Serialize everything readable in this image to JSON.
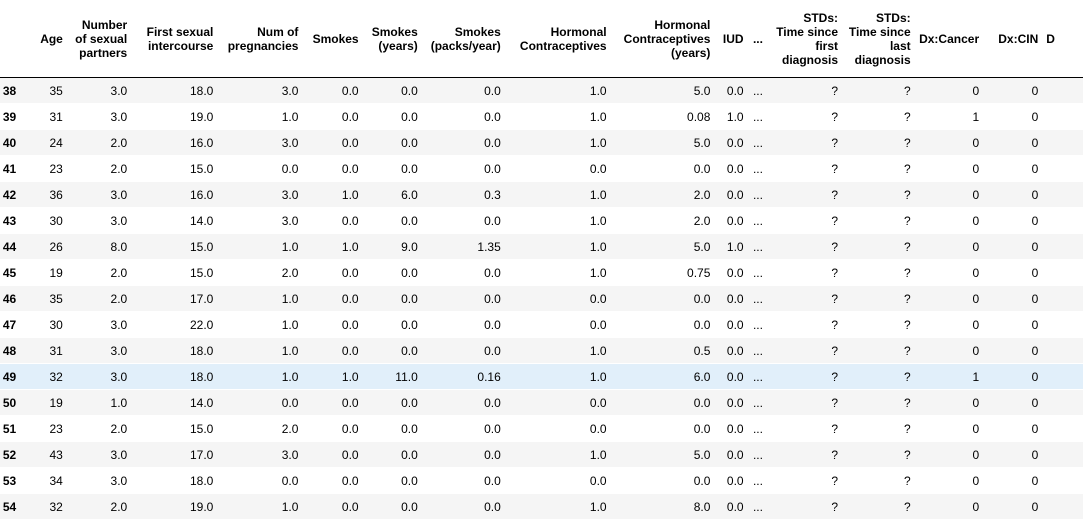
{
  "columns": {
    "age": "Age",
    "num_sexual_partners": "Number of sexual partners",
    "first_sexual_intercourse": "First sexual intercourse",
    "num_pregnancies": "Num of pregnancies",
    "smokes": "Smokes",
    "smokes_years": "Smokes (years)",
    "smokes_packs_year": "Smokes (packs/year)",
    "hormonal_contraceptives": "Hormonal Contraceptives",
    "hormonal_contraceptives_years": "Hormonal Contraceptives (years)",
    "iud": "IUD",
    "ellipsis": "...",
    "stds_time_first": "STDs: Time since first diagnosis",
    "stds_time_last": "STDs: Time since last diagnosis",
    "dx_cancer": "Dx:Cancer",
    "dx_cin": "Dx:CIN",
    "next_truncated": "D"
  },
  "rows": [
    [
      "38",
      "35",
      "3.0",
      "18.0",
      "3.0",
      "0.0",
      "0.0",
      "0.0",
      "1.0",
      "5.0",
      "0.0",
      "...",
      "?",
      "?",
      "0",
      "0"
    ],
    [
      "39",
      "31",
      "3.0",
      "19.0",
      "1.0",
      "0.0",
      "0.0",
      "0.0",
      "1.0",
      "0.08",
      "1.0",
      "...",
      "?",
      "?",
      "1",
      "0"
    ],
    [
      "40",
      "24",
      "2.0",
      "16.0",
      "3.0",
      "0.0",
      "0.0",
      "0.0",
      "1.0",
      "5.0",
      "0.0",
      "...",
      "?",
      "?",
      "0",
      "0"
    ],
    [
      "41",
      "23",
      "2.0",
      "15.0",
      "0.0",
      "0.0",
      "0.0",
      "0.0",
      "0.0",
      "0.0",
      "0.0",
      "...",
      "?",
      "?",
      "0",
      "0"
    ],
    [
      "42",
      "36",
      "3.0",
      "16.0",
      "3.0",
      "1.0",
      "6.0",
      "0.3",
      "1.0",
      "2.0",
      "0.0",
      "...",
      "?",
      "?",
      "0",
      "0"
    ],
    [
      "43",
      "30",
      "3.0",
      "14.0",
      "3.0",
      "0.0",
      "0.0",
      "0.0",
      "1.0",
      "2.0",
      "0.0",
      "...",
      "?",
      "?",
      "0",
      "0"
    ],
    [
      "44",
      "26",
      "8.0",
      "15.0",
      "1.0",
      "1.0",
      "9.0",
      "1.35",
      "1.0",
      "5.0",
      "1.0",
      "...",
      "?",
      "?",
      "0",
      "0"
    ],
    [
      "45",
      "19",
      "2.0",
      "15.0",
      "2.0",
      "0.0",
      "0.0",
      "0.0",
      "1.0",
      "0.75",
      "0.0",
      "...",
      "?",
      "?",
      "0",
      "0"
    ],
    [
      "46",
      "35",
      "2.0",
      "17.0",
      "1.0",
      "0.0",
      "0.0",
      "0.0",
      "0.0",
      "0.0",
      "0.0",
      "...",
      "?",
      "?",
      "0",
      "0"
    ],
    [
      "47",
      "30",
      "3.0",
      "22.0",
      "1.0",
      "0.0",
      "0.0",
      "0.0",
      "0.0",
      "0.0",
      "0.0",
      "...",
      "?",
      "?",
      "0",
      "0"
    ],
    [
      "48",
      "31",
      "3.0",
      "18.0",
      "1.0",
      "0.0",
      "0.0",
      "0.0",
      "1.0",
      "0.5",
      "0.0",
      "...",
      "?",
      "?",
      "0",
      "0"
    ],
    [
      "49",
      "32",
      "3.0",
      "18.0",
      "1.0",
      "1.0",
      "11.0",
      "0.16",
      "1.0",
      "6.0",
      "0.0",
      "...",
      "?",
      "?",
      "1",
      "0"
    ],
    [
      "50",
      "19",
      "1.0",
      "14.0",
      "0.0",
      "0.0",
      "0.0",
      "0.0",
      "0.0",
      "0.0",
      "0.0",
      "...",
      "?",
      "?",
      "0",
      "0"
    ],
    [
      "51",
      "23",
      "2.0",
      "15.0",
      "2.0",
      "0.0",
      "0.0",
      "0.0",
      "0.0",
      "0.0",
      "0.0",
      "...",
      "?",
      "?",
      "0",
      "0"
    ],
    [
      "52",
      "43",
      "3.0",
      "17.0",
      "3.0",
      "0.0",
      "0.0",
      "0.0",
      "1.0",
      "5.0",
      "0.0",
      "...",
      "?",
      "?",
      "0",
      "0"
    ],
    [
      "53",
      "34",
      "3.0",
      "18.0",
      "0.0",
      "0.0",
      "0.0",
      "0.0",
      "0.0",
      "0.0",
      "0.0",
      "...",
      "?",
      "?",
      "0",
      "0"
    ],
    [
      "54",
      "32",
      "2.0",
      "19.0",
      "1.0",
      "0.0",
      "0.0",
      "0.0",
      "1.0",
      "8.0",
      "0.0",
      "...",
      "?",
      "?",
      "0",
      "0"
    ]
  ],
  "highlighted_row": 11,
  "colors": {
    "row_stripe": "#f5f5f5",
    "row_hover": "#e1effa",
    "header_border": "#000000"
  }
}
